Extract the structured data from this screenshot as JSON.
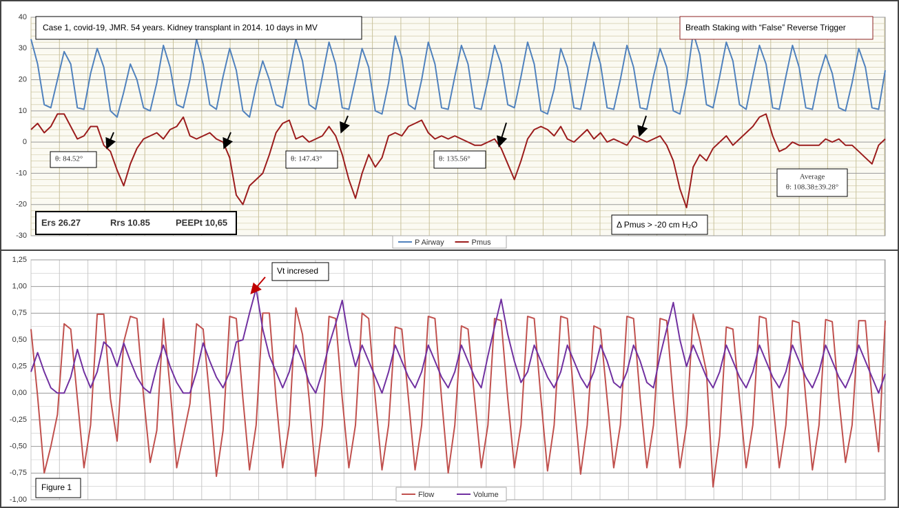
{
  "chart_data": [
    {
      "type": "line",
      "ylim": [
        -30,
        40
      ],
      "yticks": [
        -30,
        -20,
        -10,
        0,
        10,
        20,
        30,
        40
      ],
      "grid": true,
      "legend": "bottom",
      "annotations": [
        "Case 1,  covid-19,  JMR. 54 years. Kidney transplant in 2014. 10 days in MV",
        "Breath Staking with “False” Reverse Trigger",
        "θ: 84.52°",
        "θ: 147.43°",
        "θ: 135.56°",
        "Average",
        "θ: 108.38±39.28°",
        "Ers 26.27",
        "Rrs 10.85",
        "PEEPt 10,65",
        "Δ Pmus > -20 cm H₂O"
      ],
      "series": [
        {
          "name": "P Airway",
          "color": "#4f81bd",
          "values": [
            33,
            25,
            12,
            11,
            20,
            29,
            25,
            11,
            10.5,
            22,
            30,
            24,
            10,
            8,
            16,
            25,
            20,
            11,
            10,
            19,
            31,
            24,
            12,
            11,
            20,
            33,
            25,
            12,
            10.5,
            21,
            30,
            23,
            10,
            8,
            18,
            26,
            20,
            12,
            11,
            22,
            33,
            26,
            12,
            10.5,
            21,
            32,
            25,
            11,
            10.5,
            20,
            30,
            24,
            10,
            9,
            19,
            34,
            27,
            12,
            10.5,
            20,
            32,
            25,
            11,
            10.5,
            21,
            31,
            25,
            11,
            10.5,
            20,
            31,
            25,
            12,
            11,
            21,
            32,
            25,
            10,
            9,
            17,
            30,
            24,
            11,
            10.5,
            21,
            32,
            25,
            11,
            10.5,
            20,
            31,
            24,
            11,
            10.5,
            21,
            30,
            24,
            10,
            9,
            19,
            35,
            28,
            12,
            11,
            21,
            32,
            26,
            12,
            10.5,
            21,
            31,
            25,
            11,
            10.5,
            21,
            31,
            24,
            11,
            10.5,
            21,
            28,
            22,
            11,
            10,
            19,
            30,
            24,
            11,
            10.5,
            23
          ]
        },
        {
          "name": "Pmus",
          "color": "#9b1c1c",
          "values": [
            4,
            6,
            3,
            5,
            9,
            9,
            5,
            1,
            2,
            5,
            5,
            -1,
            -3,
            -9,
            -14,
            -7,
            -2,
            1,
            2,
            3,
            1,
            4,
            5,
            8,
            2,
            1,
            2,
            3,
            1,
            0,
            -5,
            -17,
            -20,
            -14,
            -12,
            -10,
            -4,
            3,
            6,
            7,
            1,
            2,
            0,
            1,
            2,
            5,
            2,
            -4,
            -12,
            -18,
            -10,
            -4,
            -8,
            -5,
            2,
            3,
            2,
            5,
            6,
            7,
            3,
            1,
            2,
            1,
            2,
            1,
            0,
            -1,
            -1,
            0,
            1,
            -2,
            -7,
            -12,
            -6,
            1,
            4,
            5,
            4,
            2,
            5,
            1,
            0,
            2,
            4,
            1,
            3,
            0,
            1,
            0,
            -1,
            2,
            1,
            0,
            1,
            2,
            -1,
            -6,
            -15,
            -21,
            -8,
            -4,
            -6,
            -2,
            0,
            2,
            -1,
            1,
            3,
            5,
            8,
            9,
            2,
            -3,
            -2,
            0,
            -1,
            -1,
            -1,
            -1,
            1,
            0,
            1,
            -1,
            -1,
            -3,
            -5,
            -7,
            -1,
            1
          ]
        }
      ]
    },
    {
      "type": "line",
      "ylim": [
        -1,
        1.25
      ],
      "yticks": [
        {
          "value": -1,
          "label": "-1,00"
        },
        {
          "value": -0.75,
          "label": "-0,75"
        },
        {
          "value": -0.5,
          "label": "-0,50"
        },
        {
          "value": -0.25,
          "label": "-0,25"
        },
        {
          "value": 0,
          "label": "0,00"
        },
        {
          "value": 0.25,
          "label": "0,25"
        },
        {
          "value": 0.5,
          "label": "0,50"
        },
        {
          "value": 0.75,
          "label": "0,75"
        },
        {
          "value": 1,
          "label": "1,00"
        },
        {
          "value": 1.25,
          "label": "1,25"
        }
      ],
      "grid": true,
      "legend": "bottom",
      "annotations": [
        "Vt incresed",
        "Figure 1"
      ],
      "series": [
        {
          "name": "Flow",
          "color": "#c0504d",
          "values": [
            0.6,
            -0.03,
            -0.75,
            -0.5,
            -0.2,
            0.65,
            0.6,
            -0.05,
            -0.7,
            -0.3,
            0.74,
            0.74,
            -0.05,
            -0.45,
            0.48,
            0.72,
            0.7,
            -0.03,
            -0.65,
            -0.35,
            0.7,
            0.05,
            -0.7,
            -0.4,
            -0.1,
            0.65,
            0.6,
            -0.05,
            -0.78,
            -0.35,
            0.72,
            0.7,
            -0.05,
            -0.72,
            -0.3,
            0.75,
            0.75,
            -0.05,
            -0.7,
            -0.3,
            0.8,
            0.55,
            -0.05,
            -0.78,
            -0.3,
            0.72,
            0.7,
            -0.05,
            -0.7,
            -0.3,
            0.75,
            0.7,
            -0.05,
            -0.72,
            -0.3,
            0.62,
            0.6,
            -0.05,
            -0.72,
            -0.3,
            0.72,
            0.7,
            -0.05,
            -0.75,
            -0.3,
            0.63,
            0.6,
            -0.05,
            -0.7,
            -0.3,
            0.7,
            0.68,
            -0.05,
            -0.7,
            -0.3,
            0.72,
            0.7,
            -0.05,
            -0.73,
            -0.3,
            0.72,
            0.7,
            -0.05,
            -0.76,
            -0.3,
            0.63,
            0.6,
            -0.05,
            -0.7,
            -0.3,
            0.72,
            0.7,
            -0.05,
            -0.7,
            -0.3,
            0.7,
            0.68,
            -0.05,
            -0.7,
            -0.3,
            0.74,
            0.5,
            0.2,
            -0.88,
            -0.4,
            0.62,
            0.6,
            -0.05,
            -0.7,
            -0.3,
            0.72,
            0.7,
            -0.05,
            -0.7,
            -0.3,
            0.68,
            0.66,
            -0.05,
            -0.72,
            -0.3,
            0.69,
            0.67,
            -0.05,
            -0.65,
            -0.3,
            0.68,
            0.68,
            -0.05,
            -0.55,
            0.68
          ]
        },
        {
          "name": "Volume",
          "color": "#7030a0",
          "values": [
            0.2,
            0.38,
            0.2,
            0.05,
            0,
            0,
            0.15,
            0.41,
            0.2,
            0.05,
            0.2,
            0.48,
            0.42,
            0.25,
            0.47,
            0.3,
            0.15,
            0.05,
            0,
            0.25,
            0.45,
            0.25,
            0.1,
            0,
            0,
            0.2,
            0.47,
            0.3,
            0.15,
            0.05,
            0.2,
            0.48,
            0.5,
            0.75,
            0.98,
            0.6,
            0.35,
            0.2,
            0.05,
            0.2,
            0.45,
            0.3,
            0.1,
            0,
            0.2,
            0.45,
            0.65,
            0.87,
            0.5,
            0.25,
            0.45,
            0.3,
            0.15,
            0,
            0.2,
            0.45,
            0.3,
            0.15,
            0.05,
            0.2,
            0.45,
            0.3,
            0.15,
            0.05,
            0.2,
            0.45,
            0.3,
            0.15,
            0.05,
            0.35,
            0.62,
            0.88,
            0.55,
            0.3,
            0.1,
            0.2,
            0.45,
            0.3,
            0.15,
            0.05,
            0.2,
            0.45,
            0.3,
            0.15,
            0.05,
            0.2,
            0.45,
            0.3,
            0.1,
            0.05,
            0.2,
            0.45,
            0.3,
            0.1,
            0.05,
            0.35,
            0.6,
            0.85,
            0.5,
            0.25,
            0.45,
            0.3,
            0.15,
            0.05,
            0.2,
            0.45,
            0.3,
            0.15,
            0.05,
            0.2,
            0.45,
            0.3,
            0.15,
            0.05,
            0.2,
            0.45,
            0.3,
            0.15,
            0.05,
            0.2,
            0.45,
            0.3,
            0.15,
            0.05,
            0.2,
            0.45,
            0.3,
            0.15,
            0,
            0.18
          ]
        }
      ]
    }
  ]
}
